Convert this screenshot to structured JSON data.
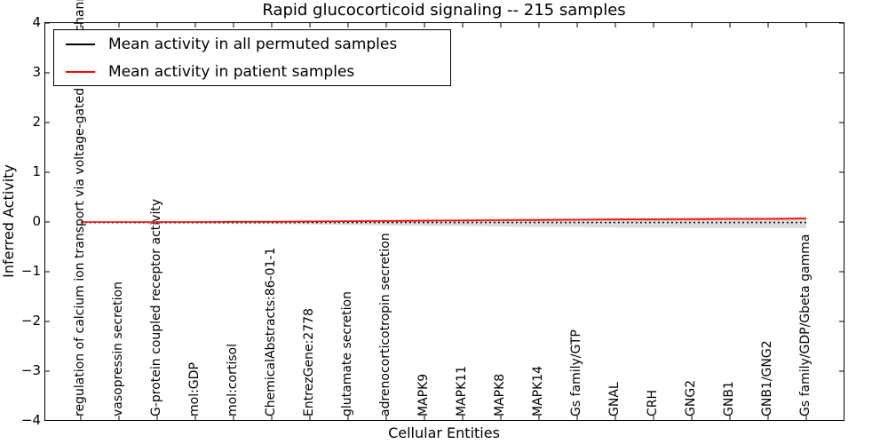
{
  "figure": {
    "title": "Rapid glucocorticoid signaling -- 215 samples",
    "xlabel": "Cellular Entities",
    "ylabel": "Inferred Activity"
  },
  "legend": {
    "position": "upper left",
    "entries": [
      {
        "label": "Mean activity in all permuted samples",
        "color": "#000000"
      },
      {
        "label": "Mean activity in patient samples",
        "color": "#ff0000"
      }
    ]
  },
  "chart_data": {
    "type": "line",
    "title": "Rapid glucocorticoid signaling -- 215 samples",
    "xlabel": "Cellular Entities",
    "ylabel": "Inferred Activity",
    "ylim": [
      -4,
      4
    ],
    "grid": false,
    "legend_position": "upper left",
    "yticks": [
      4,
      3,
      2,
      1,
      0,
      -1,
      -2,
      -3,
      -4
    ],
    "ytick_labels": [
      "4",
      "3",
      "2",
      "1",
      "0",
      "−1",
      "−2",
      "−3",
      "−4"
    ],
    "categories": [
      "regulation of calcium ion transport via voltage-gated calcium channel",
      "vasopressin secretion",
      "G-protein coupled receptor activity",
      "mol:GDP",
      "mol:cortisol",
      "ChemicalAbstracts:86-01-1",
      "EntrezGene:2778",
      "glutamate secretion",
      "adrenocorticotropin secretion",
      "MAPK9",
      "MAPK11",
      "MAPK8",
      "MAPK14",
      "Gs family/GTP",
      "GNAL",
      "CRH",
      "GNG2",
      "GNB1",
      "GNB1/GNG2",
      "Gs family/GDP/Gbeta gamma"
    ],
    "series": [
      {
        "name": "Mean activity in all permuted samples",
        "color": "#000000",
        "line_style": "dotted",
        "values": [
          -0.01,
          -0.01,
          -0.01,
          -0.01,
          -0.01,
          -0.01,
          -0.01,
          -0.01,
          -0.01,
          -0.01,
          -0.01,
          -0.01,
          -0.01,
          -0.01,
          -0.01,
          -0.01,
          -0.01,
          -0.01,
          -0.01,
          -0.01
        ]
      },
      {
        "name": "Mean activity in patient samples",
        "color": "#ff0000",
        "line_style": "solid",
        "values": [
          0.0,
          0.0,
          0.0,
          0.0,
          0.005,
          0.005,
          0.01,
          0.015,
          0.02,
          0.025,
          0.03,
          0.035,
          0.04,
          0.045,
          0.05,
          0.05,
          0.055,
          0.06,
          0.06,
          0.07
        ]
      }
    ],
    "bands": [
      {
        "name": "permuted-confidence-band",
        "color": "#bfbfbf",
        "opacity": 0.55,
        "upper": [
          0.0,
          0.0,
          0.01,
          0.01,
          0.02,
          0.02,
          0.03,
          0.04,
          0.05,
          0.06,
          0.06,
          0.07,
          0.08,
          0.08,
          0.09,
          0.09,
          0.1,
          0.1,
          0.1,
          0.1
        ],
        "lower": [
          -0.02,
          -0.02,
          -0.03,
          -0.03,
          -0.04,
          -0.04,
          -0.05,
          -0.06,
          -0.07,
          -0.08,
          -0.08,
          -0.09,
          -0.1,
          -0.1,
          -0.11,
          -0.11,
          -0.12,
          -0.12,
          -0.12,
          -0.12
        ]
      },
      {
        "name": "patient-confidence-band",
        "color": "#ff9999",
        "opacity": 0.45,
        "upper": [
          0.005,
          0.005,
          0.01,
          0.01,
          0.02,
          0.02,
          0.03,
          0.035,
          0.04,
          0.045,
          0.05,
          0.055,
          0.06,
          0.065,
          0.07,
          0.07,
          0.075,
          0.08,
          0.08,
          0.09
        ],
        "lower": [
          -0.005,
          -0.005,
          -0.01,
          -0.01,
          -0.005,
          -0.005,
          -0.005,
          0.0,
          0.0,
          0.005,
          0.01,
          0.015,
          0.02,
          0.025,
          0.03,
          0.03,
          0.035,
          0.04,
          0.04,
          0.05
        ]
      }
    ]
  }
}
